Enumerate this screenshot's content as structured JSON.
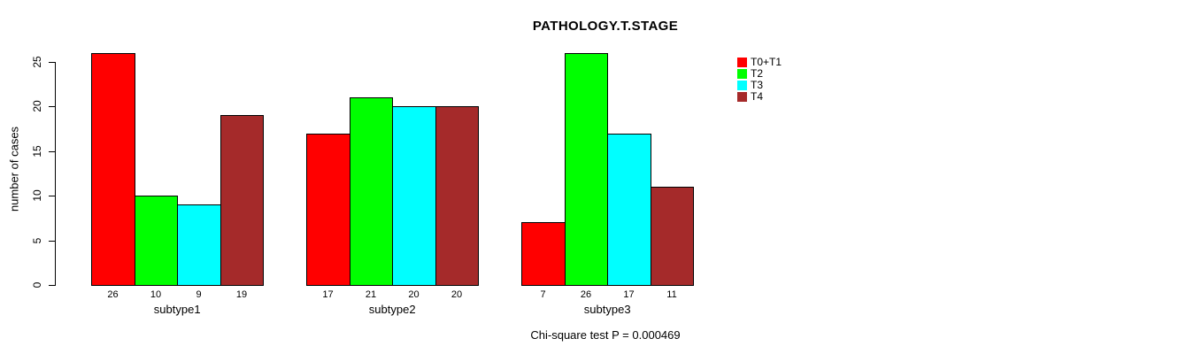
{
  "chart_data": {
    "type": "bar",
    "title": "PATHOLOGY.T.STAGE",
    "ylabel": "number of cases",
    "xlabel": "",
    "categories": [
      "subtype1",
      "subtype2",
      "subtype3"
    ],
    "series": [
      {
        "name": "T0+T1",
        "color": "#FF0000",
        "values": [
          26,
          17,
          7
        ]
      },
      {
        "name": "T2",
        "color": "#00FF00",
        "values": [
          10,
          21,
          26
        ]
      },
      {
        "name": "T3",
        "color": "#00FFFF",
        "values": [
          9,
          20,
          17
        ]
      },
      {
        "name": "T4",
        "color": "#A52A2A",
        "values": [
          19,
          20,
          11
        ]
      }
    ],
    "yticks": [
      0,
      5,
      10,
      15,
      20,
      25
    ],
    "ylim": [
      0,
      25
    ],
    "bar_value_labels": true,
    "bar_border_color": "#000000",
    "grid": false,
    "legend_position": "right",
    "annotation": "Chi-square test P = 0.000469"
  }
}
